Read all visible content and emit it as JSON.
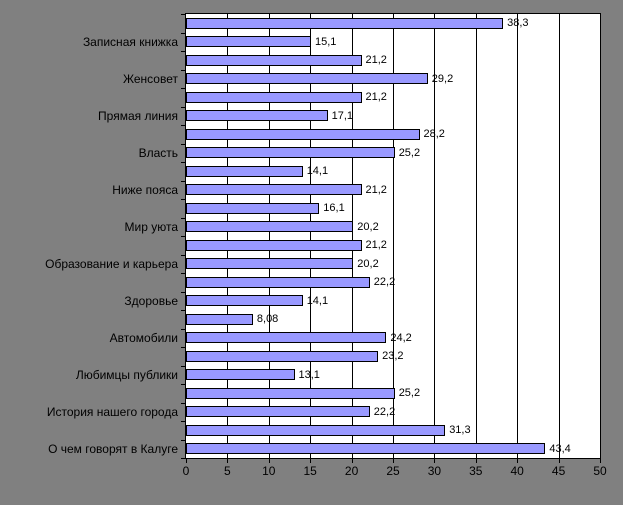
{
  "chart_data": {
    "type": "bar",
    "orientation": "horizontal",
    "categories": [
      "Записная книжка",
      "Женсовет",
      "Прямая линия",
      "Власть",
      "Ниже пояса",
      "Мир уюта",
      "Образование и карьера",
      "Здоровье",
      "Автомобили",
      "Любимцы публики",
      "История нашего города",
      "О чем говорят в Калуге"
    ],
    "category_label_interval": 2,
    "values": [
      38.3,
      15.1,
      21.2,
      29.2,
      21.2,
      17.1,
      28.2,
      25.2,
      14.1,
      21.2,
      16.1,
      20.2,
      21.2,
      20.2,
      22.2,
      14.1,
      8.08,
      24.2,
      23.2,
      13.1,
      25.2,
      22.2,
      31.3,
      43.4
    ],
    "value_labels": [
      "38,3",
      "15,1",
      "21,2",
      "29,2",
      "21,2",
      "17,1",
      "28,2",
      "25,2",
      "14,1",
      "21,2",
      "16,1",
      "20,2",
      "21,2",
      "20,2",
      "22,2",
      "14,1",
      "8,08",
      "24,2",
      "23,2",
      "13,1",
      "25,2",
      "22,2",
      "31,3",
      "43,4"
    ],
    "xlim": [
      0,
      50
    ],
    "xticks": [
      0,
      5,
      10,
      15,
      20,
      25,
      30,
      35,
      40,
      45,
      50
    ],
    "xtick_labels": [
      "0",
      "5",
      "10",
      "15",
      "20",
      "25",
      "30",
      "35",
      "40",
      "45",
      "50"
    ],
    "grid": "vertical-major",
    "legend": "none",
    "colors": {
      "chart_bg": "#808080",
      "plot_bg": "#ffffff",
      "bar_fill": "#9999ff",
      "bar_border": "#000000",
      "grid_color": "#000000",
      "text": "#000000"
    }
  }
}
